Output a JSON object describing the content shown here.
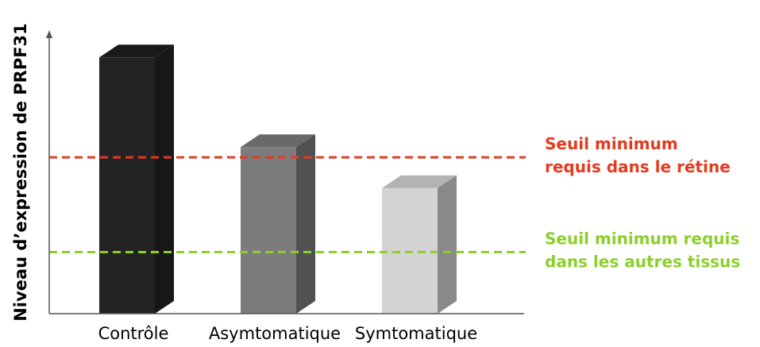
{
  "chart_data": {
    "type": "bar",
    "ylabel": "Niveau d’expression de PRPF31",
    "xlabel": "",
    "categories": [
      "Contrôle",
      "Asymtomatique",
      "Symtomatique"
    ],
    "values": [
      100,
      65,
      49
    ],
    "bar_colors": [
      "#232323",
      "#7c7c7c",
      "#d3d3d3"
    ],
    "ylim": [
      0,
      110
    ],
    "grid": false,
    "thresholds": [
      {
        "lines": [
          "Seuil minimum",
          "requis dans le rétine"
        ],
        "value": 61,
        "color": "#e53a1f"
      },
      {
        "lines": [
          "Seuil minimum requis",
          "dans les autres tissus"
        ],
        "value": 24,
        "color": "#8ccf2a"
      }
    ]
  }
}
